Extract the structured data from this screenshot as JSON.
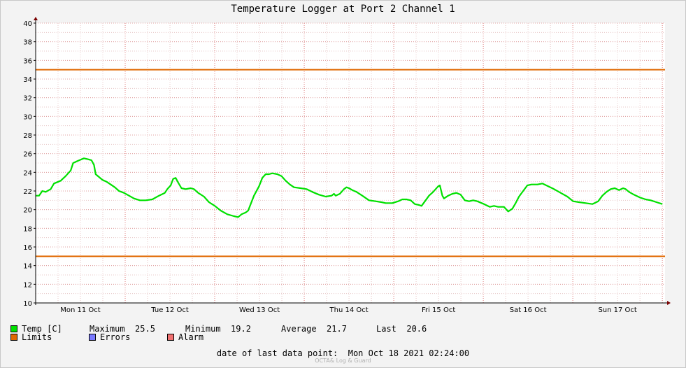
{
  "chart_data": {
    "type": "line",
    "title": "Temperature Logger at Port 2 Channel 1",
    "xlabel": "",
    "ylabel": "",
    "ylim": [
      10,
      40
    ],
    "y_ticks": [
      10,
      12,
      14,
      16,
      18,
      20,
      22,
      24,
      26,
      28,
      30,
      32,
      34,
      36,
      38,
      40
    ],
    "x_range_days": [
      0,
      7.0
    ],
    "x_tick_labels": [
      "Mon 11 Oct",
      "Tue 12 Oct",
      "Wed 13 Oct",
      "Thu 14 Oct",
      "Fri 15 Oct",
      "Sat 16 Oct",
      "Sun 17 Oct"
    ],
    "grid": true,
    "series": [
      {
        "name": "Temp [C]",
        "color": "#00e000",
        "points": [
          [
            0,
            21.5
          ],
          [
            0.04,
            21.5
          ],
          [
            0.08,
            22.0
          ],
          [
            0.12,
            21.9
          ],
          [
            0.18,
            22.2
          ],
          [
            0.22,
            22.8
          ],
          [
            0.3,
            23.1
          ],
          [
            0.36,
            23.6
          ],
          [
            0.42,
            24.2
          ],
          [
            0.45,
            25.0
          ],
          [
            0.5,
            25.2
          ],
          [
            0.55,
            25.4
          ],
          [
            0.58,
            25.5
          ],
          [
            0.63,
            25.4
          ],
          [
            0.67,
            25.3
          ],
          [
            0.7,
            24.8
          ],
          [
            0.72,
            23.8
          ],
          [
            0.8,
            23.2
          ],
          [
            0.85,
            23.0
          ],
          [
            0.9,
            22.7
          ],
          [
            0.95,
            22.4
          ],
          [
            1.0,
            22.0
          ],
          [
            1.06,
            21.8
          ],
          [
            1.12,
            21.5
          ],
          [
            1.18,
            21.2
          ],
          [
            1.25,
            21.0
          ],
          [
            1.32,
            21.0
          ],
          [
            1.4,
            21.1
          ],
          [
            1.48,
            21.5
          ],
          [
            1.55,
            21.8
          ],
          [
            1.58,
            22.2
          ],
          [
            1.62,
            22.6
          ],
          [
            1.65,
            23.3
          ],
          [
            1.68,
            23.4
          ],
          [
            1.71,
            22.9
          ],
          [
            1.75,
            22.3
          ],
          [
            1.8,
            22.2
          ],
          [
            1.86,
            22.3
          ],
          [
            1.9,
            22.2
          ],
          [
            1.95,
            21.8
          ],
          [
            2.02,
            21.4
          ],
          [
            2.08,
            20.8
          ],
          [
            2.15,
            20.4
          ],
          [
            2.22,
            19.9
          ],
          [
            2.3,
            19.5
          ],
          [
            2.38,
            19.3
          ],
          [
            2.43,
            19.2
          ],
          [
            2.47,
            19.5
          ],
          [
            2.52,
            19.7
          ],
          [
            2.55,
            19.9
          ],
          [
            2.58,
            20.6
          ],
          [
            2.62,
            21.5
          ],
          [
            2.68,
            22.5
          ],
          [
            2.72,
            23.4
          ],
          [
            2.76,
            23.8
          ],
          [
            2.8,
            23.8
          ],
          [
            2.84,
            23.9
          ],
          [
            2.9,
            23.8
          ],
          [
            2.95,
            23.6
          ],
          [
            3.0,
            23.1
          ],
          [
            3.05,
            22.7
          ],
          [
            3.1,
            22.4
          ],
          [
            3.18,
            22.3
          ],
          [
            3.25,
            22.2
          ],
          [
            3.32,
            21.9
          ],
          [
            3.4,
            21.6
          ],
          [
            3.48,
            21.4
          ],
          [
            3.55,
            21.5
          ],
          [
            3.58,
            21.7
          ],
          [
            3.6,
            21.5
          ],
          [
            3.65,
            21.7
          ],
          [
            3.7,
            22.2
          ],
          [
            3.73,
            22.4
          ],
          [
            3.76,
            22.3
          ],
          [
            3.8,
            22.1
          ],
          [
            3.85,
            21.9
          ],
          [
            3.92,
            21.5
          ],
          [
            4.0,
            21.0
          ],
          [
            4.08,
            20.9
          ],
          [
            4.15,
            20.8
          ],
          [
            4.2,
            20.7
          ],
          [
            4.28,
            20.7
          ],
          [
            4.35,
            20.9
          ],
          [
            4.4,
            21.1
          ],
          [
            4.45,
            21.1
          ],
          [
            4.5,
            21.0
          ],
          [
            4.55,
            20.6
          ],
          [
            4.6,
            20.5
          ],
          [
            4.63,
            20.4
          ],
          [
            4.68,
            21.0
          ],
          [
            4.72,
            21.5
          ],
          [
            4.77,
            21.9
          ],
          [
            4.8,
            22.2
          ],
          [
            4.83,
            22.5
          ],
          [
            4.85,
            22.6
          ],
          [
            4.88,
            21.5
          ],
          [
            4.9,
            21.2
          ],
          [
            4.95,
            21.5
          ],
          [
            5.0,
            21.7
          ],
          [
            5.05,
            21.8
          ],
          [
            5.1,
            21.6
          ],
          [
            5.15,
            21.0
          ],
          [
            5.2,
            20.9
          ],
          [
            5.25,
            21.0
          ],
          [
            5.3,
            20.9
          ],
          [
            5.38,
            20.6
          ],
          [
            5.45,
            20.3
          ],
          [
            5.5,
            20.4
          ],
          [
            5.55,
            20.3
          ],
          [
            5.62,
            20.3
          ],
          [
            5.67,
            19.8
          ],
          [
            5.72,
            20.1
          ],
          [
            5.76,
            20.7
          ],
          [
            5.8,
            21.4
          ],
          [
            5.85,
            22.0
          ],
          [
            5.9,
            22.6
          ],
          [
            5.95,
            22.7
          ],
          [
            6.02,
            22.7
          ],
          [
            6.08,
            22.8
          ],
          [
            6.15,
            22.5
          ],
          [
            6.22,
            22.2
          ],
          [
            6.3,
            21.8
          ],
          [
            6.38,
            21.4
          ],
          [
            6.45,
            20.9
          ],
          [
            6.52,
            20.8
          ],
          [
            6.6,
            20.7
          ],
          [
            6.68,
            20.6
          ],
          [
            6.75,
            20.9
          ],
          [
            6.8,
            21.5
          ],
          [
            6.85,
            21.9
          ],
          [
            6.9,
            22.2
          ],
          [
            6.95,
            22.3
          ],
          [
            7.0,
            22.1
          ],
          [
            7.05,
            22.3
          ],
          [
            7.08,
            22.2
          ],
          [
            7.12,
            21.9
          ],
          [
            7.18,
            21.6
          ],
          [
            7.25,
            21.3
          ],
          [
            7.32,
            21.1
          ],
          [
            7.38,
            21.0
          ],
          [
            7.45,
            20.8
          ],
          [
            7.52,
            20.6
          ]
        ]
      },
      {
        "name": "Limits",
        "color": "#e06800",
        "upper": 35,
        "lower": 15
      }
    ]
  },
  "legend": {
    "temp_label": "Temp [C]",
    "maximum_label": "Maximum",
    "maximum_value": "25.5",
    "minimum_label": "Minimum",
    "minimum_value": "19.2",
    "average_label": "Average",
    "average_value": "21.7",
    "last_label": "Last",
    "last_value": "20.6",
    "limits_label": "Limits",
    "errors_label": "Errors",
    "alarm_label": "Alarm",
    "temp_color": "#00e000",
    "limits_color": "#e06800",
    "errors_color": "#7a7aff",
    "alarm_color": "#f07070"
  },
  "footer": {
    "last_point": "date of last data point:  Mon Oct 18 2021 02:24:00",
    "watermark": "OCTA& Log & Guard"
  }
}
